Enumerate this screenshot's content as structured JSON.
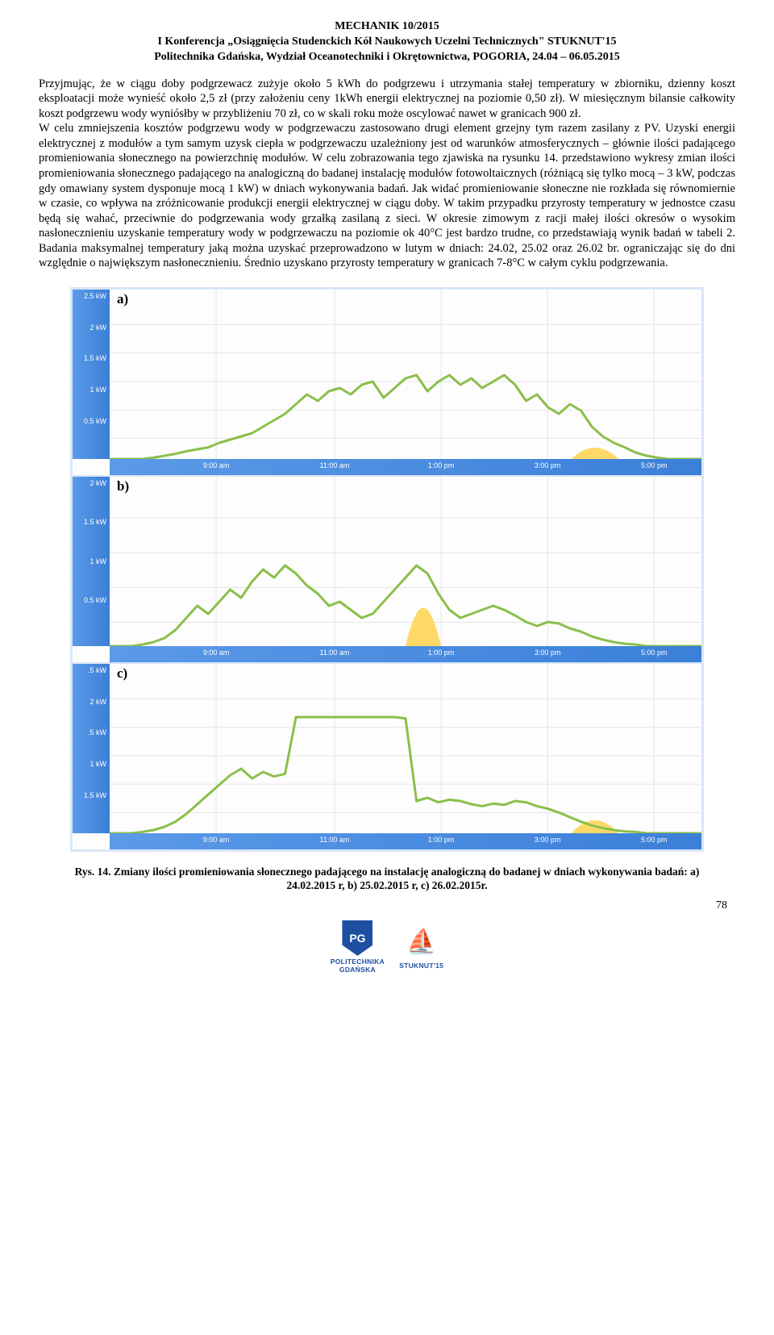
{
  "header": {
    "line1": "MECHANIK 10/2015",
    "line2": "I Konferencja „Osiągnięcia Studenckich Kół Naukowych Uczelni Technicznych\" STUKNUT'15",
    "line3": "Politechnika Gdańska, Wydział Oceanotechniki i Okrętownictwa, POGORIA, 24.04 – 06.05.2015"
  },
  "paragraph": "Przyjmując, że w ciągu doby podgrzewacz zużyje około 5 kWh do podgrzewu i utrzymania stałej temperatury w zbiorniku, dzienny koszt eksploatacji może wynieść około 2,5 zł (przy założeniu ceny 1kWh energii elektrycznej na poziomie 0,50 zł). W miesięcznym bilansie całkowity koszt podgrzewu wody wyniósłby w przybliżeniu 70 zł, co w skali roku może oscylować nawet w granicach 900 zł.\nW celu zmniejszenia kosztów podgrzewu wody w podgrzewaczu zastosowano drugi element grzejny tym razem zasilany z PV. Uzyski energii elektrycznej z modułów a tym samym uzysk ciepła w podgrzewaczu uzależniony jest od warunków atmosferycznych – głównie ilości padającego promieniowania słonecznego na powierzchnię modułów. W celu zobrazowania tego zjawiska na rysunku 14. przedstawiono wykresy zmian ilości promieniowania słonecznego padającego na analogiczną do badanej instalację modułów fotowoltaicznych (różniącą się tylko mocą – 3 kW, podczas gdy omawiany system dysponuje mocą 1 kW) w dniach wykonywania badań. Jak widać promieniowanie słoneczne nie rozkłada się równomiernie w czasie, co wpływa na zróżnicowanie produkcji energii elektrycznej w ciągu doby. W takim przypadku przyrosty temperatury w jednostce czasu będą się wahać, przeciwnie do podgrzewania wody grzałką zasilaną z sieci. W okresie zimowym z racji małej ilości okresów o wysokim nasłonecznieniu uzyskanie temperatury wody w podgrzewaczu na poziomie ok 40°C jest bardzo trudne, co przedstawiają wynik badań w tabeli 2. Badania maksymalnej temperatury jaką można uzyskać przeprowadzono w lutym w dniach: 24.02, 25.02 oraz 26.02 br. ograniczając się do dni względnie o największym nasłonecznieniu. Średnio uzyskano przyrosty temperatury w granicach 7-8°C w całym cyklu podgrzewania.",
  "charts": {
    "xLabels": [
      "9:00 am",
      "11:00 am",
      "1:00 pm",
      "3:00 pm",
      "5:00 pm"
    ],
    "xPositions": [
      0.18,
      0.38,
      0.56,
      0.74,
      0.92
    ],
    "gridColor": "#e4e4e4",
    "lineColor": "#8bbf4a",
    "fillColor": "#ffd24d",
    "background": "#fdfdfd",
    "axisBg": "#4a89dc",
    "panels": [
      {
        "letter": "a)",
        "yTicks": [
          "2.5 kW",
          "2 kW",
          "1.5 kW",
          "1 kW",
          "0.5 kW"
        ],
        "yMax": 2.5,
        "series": [
          0,
          0,
          0,
          0,
          0.02,
          0.05,
          0.08,
          0.12,
          0.15,
          0.18,
          0.25,
          0.3,
          0.35,
          0.4,
          0.5,
          0.6,
          0.7,
          0.85,
          1.0,
          0.9,
          1.05,
          1.1,
          1.0,
          1.15,
          1.2,
          0.95,
          1.1,
          1.25,
          1.3,
          1.05,
          1.2,
          1.3,
          1.15,
          1.25,
          1.1,
          1.2,
          1.3,
          1.15,
          0.9,
          1.0,
          0.8,
          0.7,
          0.85,
          0.75,
          0.5,
          0.35,
          0.25,
          0.18,
          0.1,
          0.05,
          0.02,
          0,
          0,
          0,
          0
        ],
        "highlight": {
          "start": 0.78,
          "end": 0.86,
          "peak": 0.35
        }
      },
      {
        "letter": "b)",
        "yTicks": [
          "2 kW",
          "1.5 kW",
          "1 kW",
          "0.5 kW"
        ],
        "yMax": 2.0,
        "series": [
          0,
          0,
          0,
          0.02,
          0.05,
          0.1,
          0.2,
          0.35,
          0.5,
          0.4,
          0.55,
          0.7,
          0.6,
          0.8,
          0.95,
          0.85,
          1.0,
          0.9,
          0.75,
          0.65,
          0.5,
          0.55,
          0.45,
          0.35,
          0.4,
          0.55,
          0.7,
          0.85,
          1.0,
          0.9,
          0.65,
          0.45,
          0.35,
          0.4,
          0.45,
          0.5,
          0.45,
          0.38,
          0.3,
          0.25,
          0.3,
          0.28,
          0.22,
          0.18,
          0.12,
          0.08,
          0.05,
          0.03,
          0.02,
          0,
          0,
          0,
          0,
          0,
          0
        ],
        "highlight": {
          "start": 0.5,
          "end": 0.56,
          "peak": 0.95
        }
      },
      {
        "letter": "c)",
        "yTicks": [
          ".5 kW",
          "2 kW",
          ".5 kW",
          "1 kW",
          "1.5 kW"
        ],
        "yMax": 2.5,
        "series": [
          0,
          0,
          0,
          0.02,
          0.05,
          0.1,
          0.18,
          0.3,
          0.45,
          0.6,
          0.75,
          0.9,
          1.0,
          0.85,
          0.95,
          0.88,
          0.92,
          1.8,
          1.8,
          1.8,
          1.8,
          1.8,
          1.8,
          1.8,
          1.8,
          1.8,
          1.8,
          1.78,
          0.5,
          0.55,
          0.48,
          0.52,
          0.5,
          0.45,
          0.42,
          0.46,
          0.44,
          0.5,
          0.48,
          0.42,
          0.38,
          0.32,
          0.25,
          0.18,
          0.12,
          0.08,
          0.05,
          0.03,
          0.02,
          0,
          0,
          0,
          0,
          0,
          0
        ],
        "highlight": {
          "start": 0.78,
          "end": 0.86,
          "peak": 0.4
        }
      }
    ]
  },
  "caption": "Rys. 14. Zmiany ilości promieniowania słonecznego padającego na instalację analogiczną do badanej w dniach wykonywania badań: a) 24.02.2015 r, b) 25.02.2015 r, c) 26.02.2015r.",
  "footer": {
    "logo1": "POLITECHNIKA\nGDAŃSKA",
    "logo2": "STUKNUT'15"
  },
  "pageNum": "78"
}
